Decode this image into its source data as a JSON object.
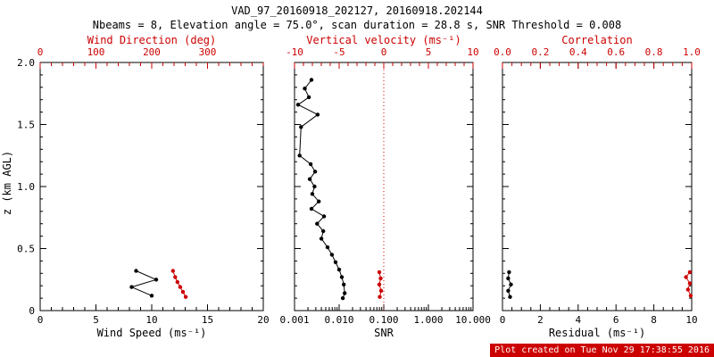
{
  "title": "VAD_97_20160918_202127, 20160918.202144",
  "subtitle": "Nbeams = 8, Elevation angle = 75.0°, scan duration = 28.8 s, SNR Threshold = 0.008",
  "ylabel": "z (km AGL)",
  "footer": "Plot created on Tue Nov 29 17:38:55 2016",
  "colors": {
    "foreground": "#000000",
    "accent_red": "#cc0000",
    "footer_bg": "#cc0000",
    "footer_fg": "#ffffff",
    "background": "#ffffff"
  },
  "chart_data": [
    {
      "type": "scatter",
      "name": "wind-panel",
      "xlabel": "Wind Speed (ms⁻¹)",
      "xscale": "linear",
      "xlim": [
        0,
        20
      ],
      "xticks": [
        0,
        5,
        10,
        15,
        20
      ],
      "xtick_labels": [
        "0",
        "5",
        "10",
        "15",
        "20"
      ],
      "xminor": 1,
      "top_label": "Wind Direction (deg)",
      "top_lim": [
        0,
        400
      ],
      "top_ticks": [
        0,
        100,
        200,
        300
      ],
      "top_tick_labels": [
        "0",
        "100",
        "200",
        "300"
      ],
      "top_minor": 20,
      "ylim": [
        0,
        2
      ],
      "yticks": [
        0,
        0.5,
        1,
        1.5,
        2
      ],
      "ytick_labels": [
        "0",
        "0.5",
        "1.0",
        "1.5",
        "2.0"
      ],
      "yminor": 0.1,
      "show_ylabels": true,
      "grid": false,
      "series": [
        {
          "name": "wind-speed",
          "axis": "bottom",
          "color": "#000000",
          "points": [
            [
              8.6,
              0.32
            ],
            [
              10.4,
              0.25
            ],
            [
              8.2,
              0.19
            ],
            [
              10.0,
              0.12
            ]
          ]
        },
        {
          "name": "wind-direction",
          "axis": "top",
          "color": "#cc0000",
          "points": [
            [
              238,
              0.32
            ],
            [
              242,
              0.27
            ],
            [
              246,
              0.23
            ],
            [
              251,
              0.19
            ],
            [
              256,
              0.15
            ],
            [
              261,
              0.11
            ]
          ]
        }
      ]
    },
    {
      "type": "scatter",
      "name": "snr-panel",
      "xlabel": "SNR",
      "xscale": "log",
      "xlim": [
        0.001,
        10
      ],
      "xticks": [
        0.001,
        0.01,
        0.1,
        1,
        10
      ],
      "xtick_labels": [
        "0.001",
        "0.010",
        "0.100",
        "1.000",
        "10.000"
      ],
      "top_label": "Vertical velocity (ms⁻¹)",
      "top_lim": [
        -10,
        10
      ],
      "top_ticks": [
        -10,
        -5,
        0,
        5,
        10
      ],
      "top_tick_labels": [
        "-10",
        "-5",
        "0",
        "5",
        "10"
      ],
      "top_minor": 1,
      "ylim": [
        0,
        2
      ],
      "yticks": [
        0,
        0.5,
        1,
        1.5,
        2
      ],
      "ytick_labels": [
        "0",
        "0.5",
        "1.0",
        "1.5",
        "2.0"
      ],
      "yminor": 0.1,
      "show_ylabels": false,
      "grid": false,
      "refline_top_value": 0,
      "series": [
        {
          "name": "snr",
          "axis": "bottom",
          "color": "#000000",
          "points": [
            [
              0.0024,
              1.86
            ],
            [
              0.0017,
              1.79
            ],
            [
              0.0021,
              1.72
            ],
            [
              0.0012,
              1.66
            ],
            [
              0.0033,
              1.58
            ],
            [
              0.0014,
              1.48
            ],
            [
              0.0013,
              1.25
            ],
            [
              0.0023,
              1.18
            ],
            [
              0.0029,
              1.12
            ],
            [
              0.0022,
              1.06
            ],
            [
              0.0028,
              1.0
            ],
            [
              0.0025,
              0.94
            ],
            [
              0.0035,
              0.88
            ],
            [
              0.0024,
              0.82
            ],
            [
              0.0046,
              0.76
            ],
            [
              0.0032,
              0.7
            ],
            [
              0.0044,
              0.64
            ],
            [
              0.004,
              0.58
            ],
            [
              0.0055,
              0.51
            ],
            [
              0.0069,
              0.45
            ],
            [
              0.0083,
              0.39
            ],
            [
              0.01,
              0.33
            ],
            [
              0.0115,
              0.27
            ],
            [
              0.0127,
              0.21
            ],
            [
              0.0133,
              0.14
            ],
            [
              0.0121,
              0.1
            ]
          ]
        },
        {
          "name": "vertical-velocity",
          "axis": "top",
          "color": "#cc0000",
          "points": [
            [
              -0.5,
              0.31
            ],
            [
              -0.35,
              0.26
            ],
            [
              -0.5,
              0.21
            ],
            [
              -0.3,
              0.16
            ],
            [
              -0.45,
              0.11
            ]
          ]
        }
      ]
    },
    {
      "type": "scatter",
      "name": "residual-panel",
      "xlabel": "Residual (ms⁻¹)",
      "xscale": "linear",
      "xlim": [
        0,
        10
      ],
      "xticks": [
        0,
        2,
        4,
        6,
        8,
        10
      ],
      "xtick_labels": [
        "0",
        "2",
        "4",
        "6",
        "8",
        "10"
      ],
      "xminor": 0.5,
      "top_label": "Correlation",
      "top_lim": [
        0,
        1
      ],
      "top_ticks": [
        0,
        0.2,
        0.4,
        0.6,
        0.8,
        1.0
      ],
      "top_tick_labels": [
        "0.0",
        "0.2",
        "0.4",
        "0.6",
        "0.8",
        "1.0"
      ],
      "top_minor": 0.05,
      "ylim": [
        0,
        2
      ],
      "yticks": [
        0,
        0.5,
        1,
        1.5,
        2
      ],
      "ytick_labels": [
        "0",
        "0.5",
        "1.0",
        "1.5",
        "2.0"
      ],
      "yminor": 0.1,
      "show_ylabels": false,
      "grid": false,
      "series": [
        {
          "name": "residual",
          "axis": "bottom",
          "color": "#000000",
          "points": [
            [
              0.35,
              0.31
            ],
            [
              0.3,
              0.26
            ],
            [
              0.45,
              0.21
            ],
            [
              0.3,
              0.16
            ],
            [
              0.4,
              0.11
            ]
          ]
        },
        {
          "name": "correlation",
          "axis": "top",
          "color": "#cc0000",
          "points": [
            [
              0.99,
              0.31
            ],
            [
              0.97,
              0.27
            ],
            [
              0.99,
              0.22
            ],
            [
              0.98,
              0.17
            ],
            [
              0.995,
              0.12
            ]
          ]
        }
      ]
    }
  ]
}
